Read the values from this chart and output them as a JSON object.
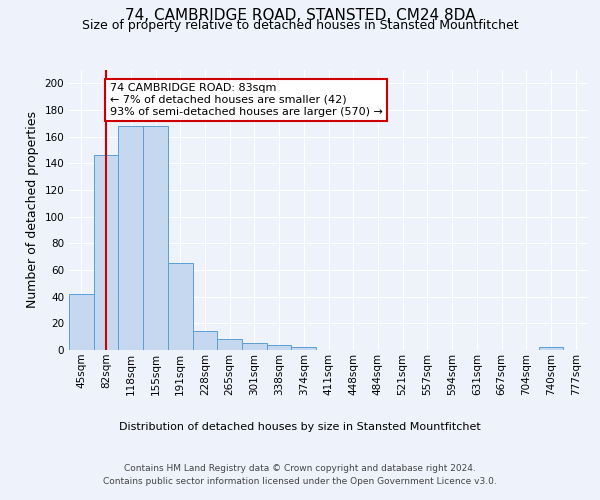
{
  "title_line1": "74, CAMBRIDGE ROAD, STANSTED, CM24 8DA",
  "title_line2": "Size of property relative to detached houses in Stansted Mountfitchet",
  "xlabel": "Distribution of detached houses by size in Stansted Mountfitchet",
  "ylabel": "Number of detached properties",
  "footnote": "Contains HM Land Registry data © Crown copyright and database right 2024.\nContains public sector information licensed under the Open Government Licence v3.0.",
  "bin_labels": [
    "45sqm",
    "82sqm",
    "118sqm",
    "155sqm",
    "191sqm",
    "228sqm",
    "265sqm",
    "301sqm",
    "338sqm",
    "374sqm",
    "411sqm",
    "448sqm",
    "484sqm",
    "521sqm",
    "557sqm",
    "594sqm",
    "631sqm",
    "667sqm",
    "704sqm",
    "740sqm",
    "777sqm"
  ],
  "bar_values": [
    42,
    146,
    168,
    168,
    65,
    14,
    8,
    5,
    4,
    2,
    0,
    0,
    0,
    0,
    0,
    0,
    0,
    0,
    0,
    2,
    0
  ],
  "bar_color": "#c5d8f0",
  "bar_edge_color": "#5a9fd4",
  "vline_color": "#cc0000",
  "annotation_box_color": "#cc0000",
  "ann_line1": "74 CAMBRIDGE ROAD: 83sqm",
  "ann_line2": "← 7% of detached houses are smaller (42)",
  "ann_line3": "93% of semi-detached houses are larger (570) →",
  "ylim": [
    0,
    210
  ],
  "yticks": [
    0,
    20,
    40,
    60,
    80,
    100,
    120,
    140,
    160,
    180,
    200
  ],
  "background_color": "#eef2fa",
  "plot_bg_color": "#eef2fa",
  "title1_fontsize": 11,
  "title2_fontsize": 9,
  "ylabel_fontsize": 9,
  "xlabel_fontsize": 8,
  "tick_fontsize": 7.5,
  "ann_fontsize": 8,
  "footnote_fontsize": 6.5
}
